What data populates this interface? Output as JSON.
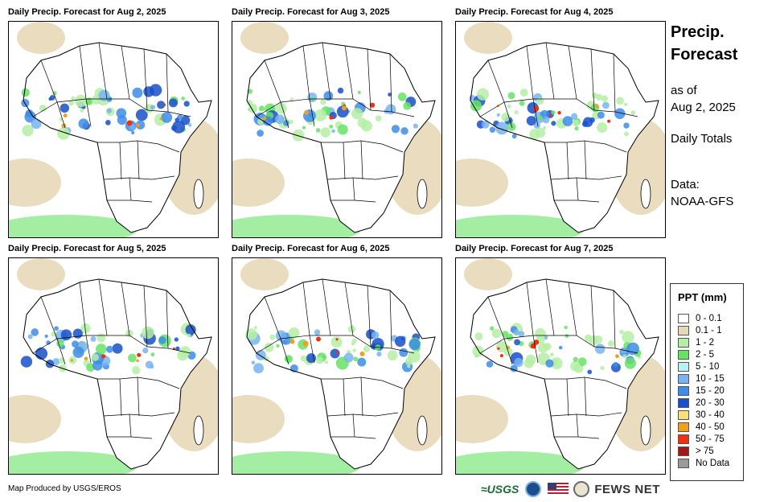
{
  "panels": [
    {
      "title": "Daily Precip. Forecast for Aug 2, 2025"
    },
    {
      "title": "Daily Precip. Forecast for Aug 3, 2025"
    },
    {
      "title": "Daily Precip. Forecast for Aug 4, 2025"
    },
    {
      "title": "Daily Precip. Forecast for Aug 5, 2025"
    },
    {
      "title": "Daily Precip. Forecast for Aug 6, 2025"
    },
    {
      "title": "Daily Precip. Forecast for Aug 7, 2025"
    }
  ],
  "side": {
    "title_line1": "Precip.",
    "title_line2": "Forecast",
    "asof_line1": "as of",
    "asof_line2": "Aug 2, 2025",
    "totals": "Daily Totals",
    "data_line1": "Data:",
    "data_line2": "NOAA-GFS"
  },
  "legend": {
    "title": "PPT (mm)",
    "items": [
      {
        "label": "0 - 0.1",
        "color": "#ffffff"
      },
      {
        "label": "0.1 - 1",
        "color": "#e8d8b8"
      },
      {
        "label": "1 - 2",
        "color": "#b5efa6"
      },
      {
        "label": "2 - 5",
        "color": "#66e266"
      },
      {
        "label": "5 - 10",
        "color": "#b8f2f2"
      },
      {
        "label": "10 - 15",
        "color": "#78b4f0"
      },
      {
        "label": "15 - 20",
        "color": "#3c8ce8"
      },
      {
        "label": "20 - 30",
        "color": "#1850c8"
      },
      {
        "label": "30 - 40",
        "color": "#f8e07a"
      },
      {
        "label": "40 - 50",
        "color": "#f0a020"
      },
      {
        "label": "50 - 75",
        "color": "#f03010"
      },
      {
        "label": "> 75",
        "color": "#a01818"
      },
      {
        "label": "No Data",
        "color": "#9a9a9a"
      }
    ]
  },
  "footer": {
    "credit": "Map Produced by USGS/EROS",
    "usgs": "≈USGS",
    "fews": "FEWS NET"
  }
}
